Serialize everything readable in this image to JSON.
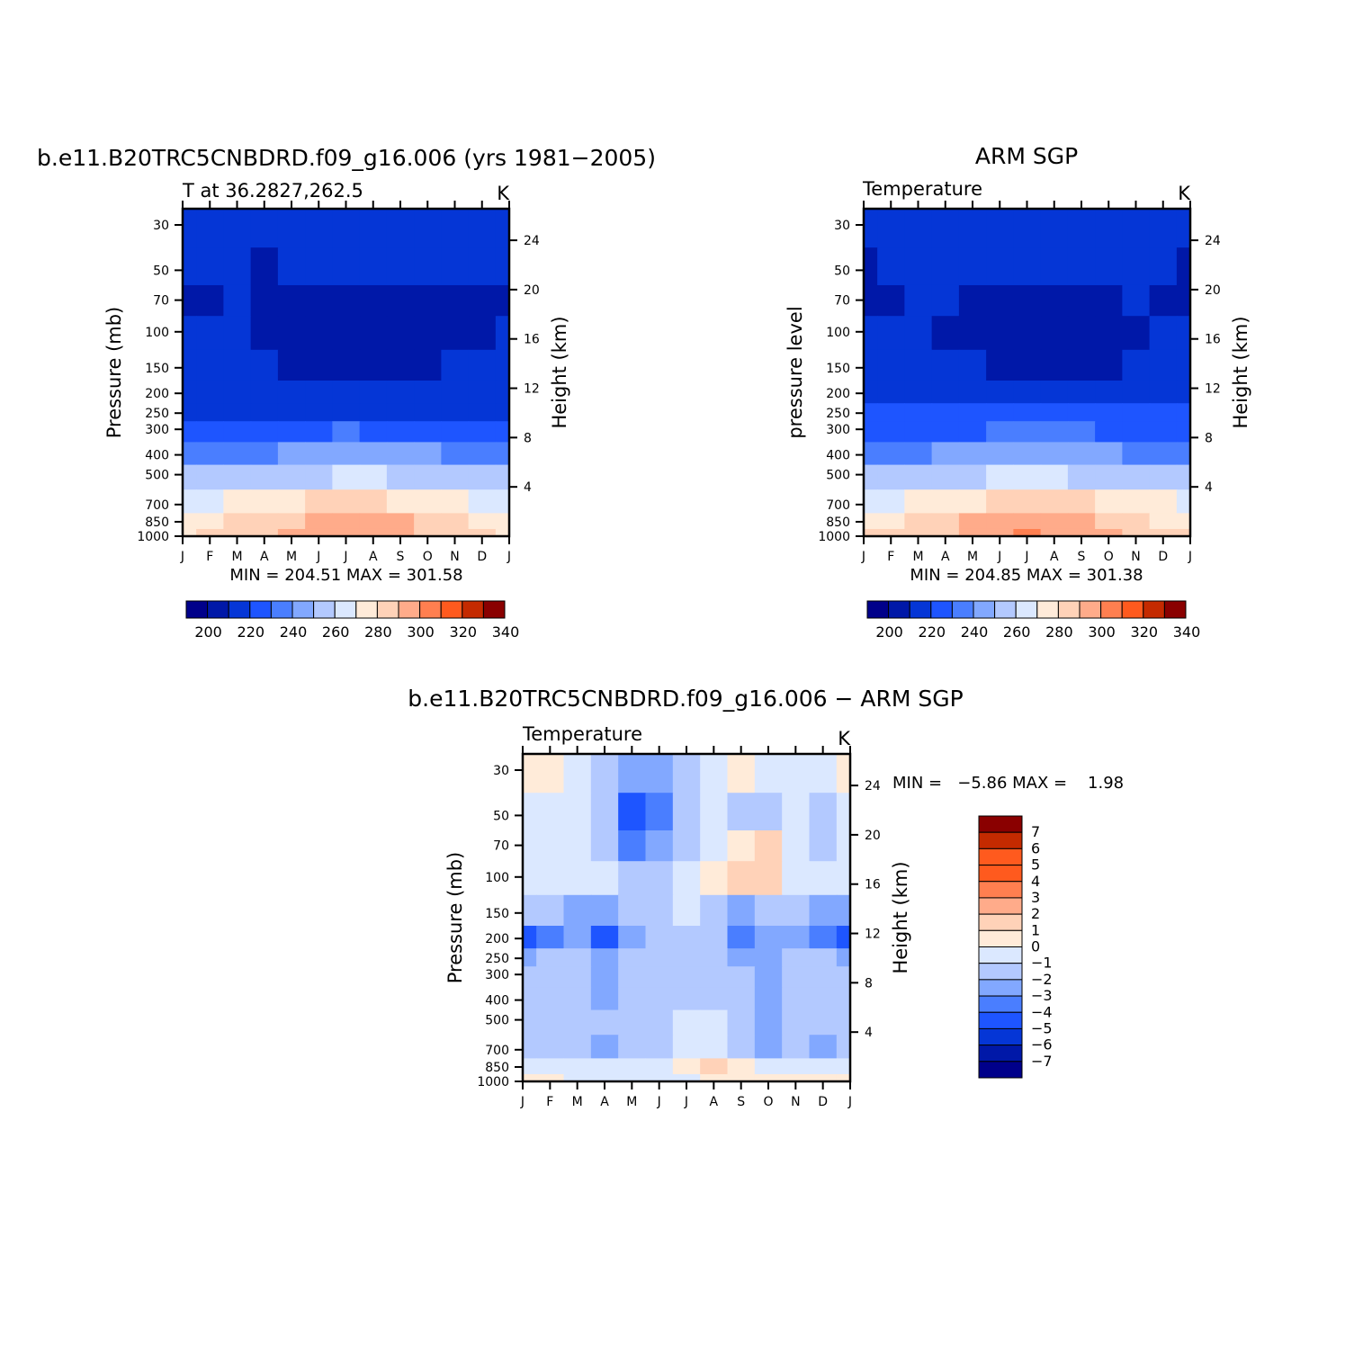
{
  "palette": [
    "#00008a",
    "#0018a8",
    "#0536d6",
    "#1e55ff",
    "#4a7eff",
    "#82a8ff",
    "#b3c9ff",
    "#dbe8ff",
    "#ffebd9",
    "#ffd2b8",
    "#ffab8a",
    "#ff7f50",
    "#ff5a1e",
    "#c42a00",
    "#8a0000"
  ],
  "months": [
    "J",
    "F",
    "M",
    "A",
    "M",
    "J",
    "J",
    "A",
    "S",
    "O",
    "N",
    "D",
    "J"
  ],
  "pressure_ticks": [
    "30",
    "50",
    "70",
    "100",
    "150",
    "200",
    "250",
    "300",
    "400",
    "500",
    "700",
    "850",
    "1000"
  ],
  "height_ticks": [
    "4",
    "8",
    "12",
    "16",
    "20",
    "24"
  ],
  "panels": [
    {
      "id": "model",
      "main_title": "b.e11.B20TRC5CNBDRD.f09_g16.006 (yrs 1981−2005)",
      "left_label": "T at 36.2827,262.5",
      "units": "K",
      "ylabel": "Pressure (mb)",
      "ylabel_right": "Height (km)",
      "minmax": "MIN = 204.51 MAX = 301.58",
      "colorbar_labels": [
        "200",
        "220",
        "240",
        "260",
        "280",
        "300",
        "320",
        "340"
      ]
    },
    {
      "id": "obs",
      "main_title": "ARM SGP",
      "left_label": "Temperature",
      "units": "K",
      "ylabel": "pressure level",
      "ylabel_right": "Height (km)",
      "minmax": "MIN = 204.85 MAX = 301.38",
      "colorbar_labels": [
        "200",
        "220",
        "240",
        "260",
        "280",
        "300",
        "320",
        "340"
      ]
    },
    {
      "id": "diff",
      "main_title": "b.e11.B20TRC5CNBDRD.f09_g16.006 − ARM SGP",
      "left_label": "Temperature",
      "units": "K",
      "ylabel": "Pressure (mb)",
      "ylabel_right": "Height (km)",
      "minmax": "MIN =   −5.86 MAX =    1.98",
      "colorbar_labels": [
        "7",
        "6",
        "5",
        "4",
        "3",
        "2",
        "1",
        "0",
        "−1",
        "−2",
        "−3",
        "−4",
        "−5",
        "−6",
        "−7"
      ]
    }
  ],
  "chart_data": [
    {
      "type": "heatmap",
      "title": "b.e11.B20TRC5CNBDRD.f09_g16.006 (yrs 1981−2005)",
      "subtitle": "T at 36.2827,262.5",
      "units": "K",
      "ylabel": "Pressure (mb)",
      "ylabel_right": "Height (km)",
      "x": [
        "J",
        "F",
        "M",
        "A",
        "M",
        "J",
        "J",
        "A",
        "S",
        "O",
        "N",
        "D",
        "J"
      ],
      "y": [
        30,
        50,
        70,
        100,
        150,
        200,
        250,
        300,
        400,
        500,
        700,
        850,
        1000
      ],
      "yscale": "log",
      "yinverted": true,
      "levels": [
        200,
        205,
        210,
        215,
        220,
        225,
        230,
        235,
        240,
        245,
        250,
        255,
        260,
        265,
        270,
        275,
        280,
        285,
        290,
        295,
        300,
        305,
        310,
        315,
        320,
        325,
        330,
        335,
        340,
        345
      ],
      "z": [
        [
          212,
          212,
          212,
          212,
          212,
          212,
          213,
          213,
          212,
          212,
          212,
          212,
          212
        ],
        [
          212,
          211,
          210,
          209,
          210,
          211,
          211,
          211,
          210,
          211,
          211,
          212,
          212
        ],
        [
          209,
          209,
          210,
          209,
          209,
          208,
          208,
          208,
          208,
          208,
          209,
          209,
          209
        ],
        [
          211,
          210,
          210,
          209,
          208,
          207,
          206,
          206,
          206,
          207,
          208,
          209,
          211
        ],
        [
          214,
          214,
          214,
          212,
          209,
          208,
          208,
          208,
          208,
          209,
          210,
          213,
          214
        ],
        [
          215,
          215,
          215,
          215,
          214,
          213,
          213,
          213,
          213,
          213,
          214,
          215,
          215
        ],
        [
          219,
          219,
          219,
          219,
          218,
          218,
          218,
          218,
          218,
          218,
          219,
          219,
          219
        ],
        [
          224,
          224,
          225,
          226,
          227,
          229,
          230,
          229,
          228,
          227,
          225,
          224,
          224
        ],
        [
          236,
          236,
          237,
          239,
          242,
          245,
          247,
          246,
          244,
          241,
          238,
          236,
          236
        ],
        [
          250,
          250,
          251,
          253,
          256,
          259,
          260,
          260,
          258,
          255,
          252,
          250,
          250
        ],
        [
          268,
          268,
          270,
          273,
          277,
          280,
          282,
          281,
          279,
          276,
          272,
          269,
          268
        ],
        [
          277,
          278,
          280,
          284,
          289,
          293,
          295,
          294,
          291,
          287,
          282,
          278,
          277
        ],
        [
          279,
          280,
          283,
          288,
          293,
          297,
          299,
          298,
          294,
          289,
          284,
          280,
          279
        ]
      ],
      "min": 204.51,
      "max": 301.58
    },
    {
      "type": "heatmap",
      "title": "ARM SGP",
      "subtitle": "Temperature",
      "units": "K",
      "ylabel": "pressure level",
      "ylabel_right": "Height (km)",
      "x": [
        "J",
        "F",
        "M",
        "A",
        "M",
        "J",
        "J",
        "A",
        "S",
        "O",
        "N",
        "D",
        "J"
      ],
      "y": [
        30,
        50,
        70,
        100,
        150,
        200,
        250,
        300,
        400,
        500,
        700,
        850,
        1000
      ],
      "yscale": "log",
      "yinverted": true,
      "levels": [
        200,
        205,
        210,
        215,
        220,
        225,
        230,
        235,
        240,
        245,
        250,
        255,
        260,
        265,
        270,
        275,
        280,
        285,
        290,
        295,
        300,
        305,
        310,
        315,
        320,
        325,
        330,
        335,
        340,
        345
      ],
      "z": [
        [
          212,
          212,
          212,
          212,
          212,
          213,
          214,
          213,
          212,
          212,
          212,
          212,
          212
        ],
        [
          209,
          210,
          211,
          212,
          212,
          212,
          212,
          212,
          212,
          212,
          211,
          210,
          209
        ],
        [
          208,
          209,
          211,
          210,
          209,
          208,
          208,
          208,
          208,
          209,
          210,
          209,
          208
        ],
        [
          211,
          211,
          210,
          208,
          207,
          206,
          206,
          206,
          206,
          207,
          208,
          210,
          211
        ],
        [
          214,
          214,
          214,
          213,
          211,
          209,
          208,
          208,
          208,
          209,
          211,
          213,
          214
        ],
        [
          216,
          216,
          216,
          216,
          215,
          214,
          214,
          214,
          214,
          214,
          215,
          216,
          216
        ],
        [
          222,
          222,
          222,
          222,
          221,
          221,
          221,
          221,
          221,
          221,
          222,
          222,
          222
        ],
        [
          226,
          226,
          227,
          228,
          229,
          231,
          232,
          231,
          230,
          229,
          227,
          226,
          226
        ],
        [
          237,
          237,
          238,
          240,
          243,
          246,
          248,
          247,
          245,
          242,
          239,
          237,
          237
        ],
        [
          251,
          251,
          252,
          254,
          257,
          260,
          261,
          261,
          259,
          256,
          253,
          251,
          251
        ],
        [
          269,
          269,
          271,
          274,
          278,
          281,
          283,
          282,
          280,
          277,
          273,
          270,
          269
        ],
        [
          278,
          279,
          281,
          285,
          290,
          294,
          296,
          295,
          292,
          288,
          283,
          279,
          278
        ],
        [
          280,
          281,
          284,
          289,
          294,
          298,
          300,
          299,
          295,
          290,
          285,
          281,
          280
        ]
      ],
      "min": 204.85,
      "max": 301.38
    },
    {
      "type": "heatmap",
      "title": "b.e11.B20TRC5CNBDRD.f09_g16.006 − ARM SGP",
      "subtitle": "Temperature",
      "units": "K",
      "ylabel": "Pressure (mb)",
      "ylabel_right": "Height (km)",
      "x": [
        "J",
        "F",
        "M",
        "A",
        "M",
        "J",
        "J",
        "A",
        "S",
        "O",
        "N",
        "D",
        "J"
      ],
      "y": [
        30,
        50,
        70,
        100,
        150,
        200,
        250,
        300,
        400,
        500,
        700,
        850,
        1000
      ],
      "yscale": "log",
      "yinverted": true,
      "levels": [
        -7,
        -6,
        -5,
        -4,
        -3,
        -2,
        -1,
        0,
        1,
        2,
        3,
        4,
        5,
        6,
        7
      ],
      "z": [
        [
          0.5,
          0.5,
          -0.5,
          -1.5,
          -3.0,
          -2.5,
          -1.5,
          -0.5,
          0.5,
          -1.0,
          -0.5,
          -0.5,
          0.5
        ],
        [
          -0.5,
          -0.5,
          -0.5,
          -2.0,
          -4.5,
          -4.0,
          -2.0,
          -0.5,
          -1.5,
          -1.5,
          -0.5,
          -1.5,
          -0.5
        ],
        [
          -0.5,
          -0.5,
          -0.5,
          -2.0,
          -3.5,
          -3.0,
          -1.5,
          -0.5,
          0.5,
          1.0,
          -0.5,
          -1.5,
          -0.5
        ],
        [
          -0.5,
          -0.5,
          -0.5,
          -1.0,
          -1.5,
          -1.5,
          -0.5,
          0.5,
          1.5,
          1.0,
          -0.5,
          -1.0,
          -1.0
        ],
        [
          -2.0,
          -2.0,
          -2.5,
          -2.5,
          -2.0,
          -1.5,
          -1.0,
          -1.5,
          -2.5,
          -2.0,
          -2.0,
          -2.5,
          -3.0
        ],
        [
          -4.5,
          -3.5,
          -3.0,
          -4.5,
          -3.0,
          -1.5,
          -1.5,
          -1.5,
          -4.0,
          -3.0,
          -2.5,
          -3.5,
          -4.5
        ],
        [
          -3.0,
          -2.0,
          -2.0,
          -3.0,
          -2.0,
          -1.5,
          -1.5,
          -1.5,
          -2.5,
          -2.5,
          -2.0,
          -2.0,
          -2.5
        ],
        [
          -2.0,
          -1.5,
          -1.5,
          -2.5,
          -1.5,
          -1.5,
          -1.5,
          -1.5,
          -1.5,
          -2.5,
          -1.5,
          -1.5,
          -1.5
        ],
        [
          -1.5,
          -1.5,
          -1.5,
          -2.5,
          -1.5,
          -1.5,
          -2.0,
          -1.5,
          -1.5,
          -2.5,
          -1.5,
          -1.5,
          -1.5
        ],
        [
          -1.5,
          -1.5,
          -1.5,
          -1.5,
          -1.5,
          -1.5,
          -0.5,
          -0.5,
          -1.5,
          -2.5,
          -1.5,
          -1.5,
          -1.5
        ],
        [
          -1.5,
          -1.5,
          -1.5,
          -2.5,
          -1.5,
          -1.5,
          -0.5,
          -0.5,
          -1.5,
          -2.5,
          -1.5,
          -2.5,
          -1.5
        ],
        [
          -0.5,
          -0.5,
          -0.5,
          -0.5,
          -0.5,
          -0.5,
          0.5,
          1.5,
          0.5,
          -0.5,
          -0.5,
          -0.5,
          -0.5
        ],
        [
          0.5,
          0.5,
          -0.5,
          -0.5,
          -0.5,
          -0.5,
          -0.5,
          0.5,
          0.5,
          0.5,
          0.5,
          0.5,
          0.5
        ]
      ],
      "min": -5.86,
      "max": 1.98
    }
  ]
}
